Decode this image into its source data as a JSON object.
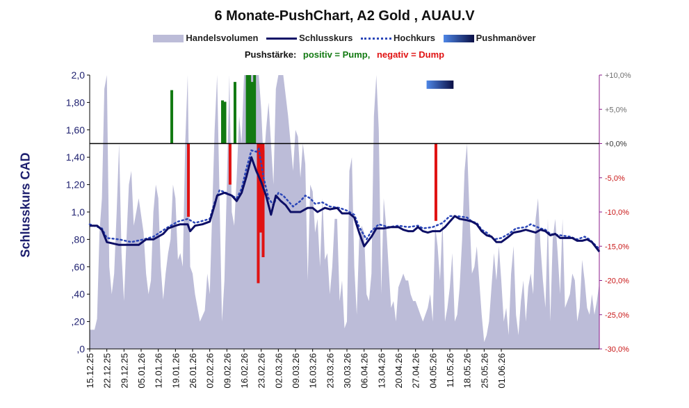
{
  "chart_data": {
    "type": "line",
    "title": "6 Monate-PushChart, A2 Gold , AUAU.V",
    "legend": {
      "volume": "Handelsvolumen",
      "close": "Schlusskurs",
      "high": "Hochkurs",
      "push": "Pushmanöver"
    },
    "push_note": {
      "prefix": "Pushstärke:",
      "positive": "positiv = Pump,",
      "negative": "negativ = Dump"
    },
    "ylabel": "Schlusskurs CAD",
    "ylim": [
      0,
      2.0
    ],
    "y_ticks": [
      ",0",
      ",20",
      ",40",
      ",60",
      ",80",
      "1,0",
      "1,20",
      "1,40",
      "1,60",
      "1,80",
      "2,0"
    ],
    "y2lim": [
      -30,
      10
    ],
    "y2_ticks": [
      "-30,0%",
      "-25,0%",
      "-20,0%",
      "-15,0%",
      "-10,0%",
      "-5,0%",
      "+0,0%",
      "+5,0%",
      "+10,0%"
    ],
    "x_ticks": [
      "15.12.25",
      "22.12.25",
      "29.12.25",
      "05.01.26",
      "12.01.26",
      "19.01.26",
      "26.01.26",
      "02.02.26",
      "09.02.26",
      "16.02.26",
      "23.02.26",
      "02.03.26",
      "09.03.26",
      "16.03.26",
      "23.03.26",
      "30.03.26",
      "06.04.26",
      "13.04.26",
      "20.04.26",
      "27.04.26",
      "04.05.26",
      "11.05.26",
      "18.05.26",
      "25.05.26",
      "01.06.26"
    ],
    "days": 180,
    "close": [
      [
        0,
        0.9
      ],
      [
        3,
        0.9
      ],
      [
        5,
        0.87
      ],
      [
        7,
        0.78
      ],
      [
        12,
        0.76
      ],
      [
        15,
        0.76
      ],
      [
        20,
        0.76
      ],
      [
        23,
        0.8
      ],
      [
        26,
        0.8
      ],
      [
        30,
        0.84
      ],
      [
        32,
        0.88
      ],
      [
        35,
        0.9
      ],
      [
        37,
        0.91
      ],
      [
        40,
        0.91
      ],
      [
        41,
        0.86
      ],
      [
        43,
        0.9
      ],
      [
        46,
        0.91
      ],
      [
        49,
        0.93
      ],
      [
        51,
        1.05
      ],
      [
        52,
        1.12
      ],
      [
        55,
        1.14
      ],
      [
        58,
        1.12
      ],
      [
        60,
        1.08
      ],
      [
        62,
        1.14
      ],
      [
        64,
        1.26
      ],
      [
        66,
        1.4
      ],
      [
        68,
        1.3
      ],
      [
        70,
        1.22
      ],
      [
        72,
        1.12
      ],
      [
        74,
        0.98
      ],
      [
        76,
        1.12
      ],
      [
        78,
        1.08
      ],
      [
        80,
        1.05
      ],
      [
        82,
        1.0
      ],
      [
        84,
        1.0
      ],
      [
        86,
        1.0
      ],
      [
        89,
        1.03
      ],
      [
        91,
        1.03
      ],
      [
        93,
        1.0
      ],
      [
        96,
        1.03
      ],
      [
        98,
        1.02
      ],
      [
        101,
        1.03
      ],
      [
        103,
        0.99
      ],
      [
        106,
        0.99
      ],
      [
        108,
        0.96
      ],
      [
        110,
        0.85
      ],
      [
        112,
        0.75
      ],
      [
        115,
        0.82
      ],
      [
        117,
        0.88
      ],
      [
        120,
        0.88
      ],
      [
        123,
        0.89
      ],
      [
        126,
        0.89
      ],
      [
        128,
        0.87
      ],
      [
        130,
        0.86
      ],
      [
        132,
        0.86
      ],
      [
        134,
        0.89
      ],
      [
        136,
        0.86
      ],
      [
        138,
        0.85
      ],
      [
        140,
        0.86
      ],
      [
        143,
        0.86
      ],
      [
        145,
        0.89
      ],
      [
        147,
        0.93
      ],
      [
        149,
        0.97
      ],
      [
        151,
        0.95
      ],
      [
        154,
        0.94
      ],
      [
        156,
        0.93
      ],
      [
        158,
        0.91
      ],
      [
        160,
        0.86
      ],
      [
        162,
        0.83
      ],
      [
        164,
        0.82
      ],
      [
        166,
        0.78
      ],
      [
        168,
        0.78
      ],
      [
        171,
        0.82
      ],
      [
        173,
        0.85
      ],
      [
        176,
        0.86
      ],
      [
        178,
        0.87
      ],
      [
        180,
        0.86
      ],
      [
        182,
        0.85
      ],
      [
        184,
        0.87
      ],
      [
        186,
        0.86
      ],
      [
        188,
        0.83
      ],
      [
        190,
        0.84
      ],
      [
        192,
        0.81
      ],
      [
        195,
        0.81
      ],
      [
        197,
        0.81
      ],
      [
        199,
        0.79
      ],
      [
        201,
        0.79
      ],
      [
        203,
        0.8
      ],
      [
        205,
        0.78
      ],
      [
        208,
        0.71
      ]
    ],
    "high": [
      [
        0,
        0.91
      ],
      [
        5,
        0.88
      ],
      [
        7,
        0.81
      ],
      [
        12,
        0.8
      ],
      [
        17,
        0.78
      ],
      [
        22,
        0.8
      ],
      [
        26,
        0.82
      ],
      [
        32,
        0.89
      ],
      [
        36,
        0.93
      ],
      [
        40,
        0.95
      ],
      [
        43,
        0.92
      ],
      [
        49,
        0.95
      ],
      [
        51,
        1.07
      ],
      [
        53,
        1.16
      ],
      [
        57,
        1.13
      ],
      [
        60,
        1.1
      ],
      [
        62,
        1.17
      ],
      [
        64,
        1.32
      ],
      [
        66,
        1.45
      ],
      [
        68,
        1.44
      ],
      [
        69,
        1.46
      ],
      [
        71,
        1.25
      ],
      [
        73,
        1.1
      ],
      [
        75,
        1.05
      ],
      [
        77,
        1.14
      ],
      [
        79,
        1.12
      ],
      [
        81,
        1.08
      ],
      [
        83,
        1.04
      ],
      [
        86,
        1.08
      ],
      [
        88,
        1.12
      ],
      [
        90,
        1.1
      ],
      [
        92,
        1.06
      ],
      [
        95,
        1.07
      ],
      [
        98,
        1.04
      ],
      [
        102,
        1.03
      ],
      [
        105,
        1.01
      ],
      [
        108,
        0.98
      ],
      [
        110,
        0.89
      ],
      [
        113,
        0.8
      ],
      [
        115,
        0.86
      ],
      [
        118,
        0.91
      ],
      [
        122,
        0.89
      ],
      [
        126,
        0.9
      ],
      [
        130,
        0.89
      ],
      [
        134,
        0.9
      ],
      [
        136,
        0.88
      ],
      [
        140,
        0.89
      ],
      [
        144,
        0.92
      ],
      [
        147,
        0.97
      ],
      [
        150,
        0.97
      ],
      [
        154,
        0.96
      ],
      [
        156,
        0.93
      ],
      [
        158,
        0.92
      ],
      [
        160,
        0.87
      ],
      [
        162,
        0.85
      ],
      [
        165,
        0.8
      ],
      [
        168,
        0.81
      ],
      [
        171,
        0.84
      ],
      [
        174,
        0.88
      ],
      [
        178,
        0.89
      ],
      [
        180,
        0.91
      ],
      [
        184,
        0.88
      ],
      [
        186,
        0.87
      ],
      [
        188,
        0.84
      ],
      [
        192,
        0.83
      ],
      [
        196,
        0.82
      ],
      [
        199,
        0.8
      ],
      [
        202,
        0.82
      ],
      [
        204,
        0.8
      ],
      [
        208,
        0.73
      ]
    ],
    "volume": [
      [
        0,
        0.14
      ],
      [
        1,
        0.14
      ],
      [
        2,
        0.14
      ],
      [
        3,
        0.22
      ],
      [
        4,
        0.85
      ],
      [
        5,
        1.1
      ],
      [
        6,
        1.9
      ],
      [
        7,
        2.1
      ],
      [
        8,
        0.6
      ],
      [
        9,
        0.4
      ],
      [
        10,
        0.55
      ],
      [
        11,
        1.0
      ],
      [
        12,
        1.5
      ],
      [
        13,
        0.7
      ],
      [
        14,
        0.35
      ],
      [
        15,
        0.8
      ],
      [
        16,
        1.2
      ],
      [
        17,
        1.3
      ],
      [
        18,
        0.9
      ],
      [
        19,
        1.0
      ],
      [
        20,
        1.1
      ],
      [
        22,
        0.85
      ],
      [
        23,
        0.55
      ],
      [
        24,
        0.4
      ],
      [
        25,
        0.5
      ],
      [
        26,
        1.0
      ],
      [
        27,
        1.2
      ],
      [
        28,
        1.1
      ],
      [
        29,
        0.6
      ],
      [
        30,
        0.36
      ],
      [
        31,
        0.55
      ],
      [
        32,
        0.7
      ],
      [
        33,
        0.8
      ],
      [
        34,
        1.2
      ],
      [
        35,
        1.1
      ],
      [
        36,
        0.65
      ],
      [
        37,
        0.7
      ],
      [
        38,
        0.6
      ],
      [
        39,
        1.5
      ],
      [
        40,
        2.1
      ],
      [
        41,
        0.6
      ],
      [
        42,
        0.55
      ],
      [
        43,
        0.4
      ],
      [
        44,
        0.3
      ],
      [
        45,
        0.2
      ],
      [
        47,
        0.28
      ],
      [
        48,
        0.55
      ],
      [
        49,
        0.4
      ],
      [
        50,
        1.0
      ],
      [
        51,
        1.6
      ],
      [
        52,
        2.0
      ],
      [
        53,
        1.1
      ],
      [
        54,
        0.2
      ],
      [
        55,
        0.5
      ],
      [
        56,
        1.2
      ],
      [
        57,
        2.1
      ],
      [
        58,
        1.0
      ],
      [
        59,
        0.9
      ],
      [
        60,
        1.25
      ],
      [
        61,
        1.7
      ],
      [
        62,
        1.5
      ],
      [
        63,
        2.1
      ],
      [
        65,
        2.1
      ],
      [
        67,
        2.1
      ],
      [
        69,
        2.1
      ],
      [
        70,
        1.75
      ],
      [
        71,
        1.35
      ],
      [
        72,
        1.6
      ],
      [
        73,
        1.8
      ],
      [
        75,
        1.2
      ],
      [
        76,
        1.9
      ],
      [
        77,
        2.0
      ],
      [
        78,
        2.1
      ],
      [
        79,
        2.1
      ],
      [
        80,
        1.85
      ],
      [
        81,
        1.7
      ],
      [
        82,
        1.5
      ],
      [
        83,
        1.3
      ],
      [
        84,
        1.6
      ],
      [
        85,
        1.55
      ],
      [
        86,
        1.25
      ],
      [
        87,
        1.5
      ],
      [
        88,
        1.35
      ],
      [
        89,
        0.5
      ],
      [
        90,
        1.2
      ],
      [
        91,
        1.15
      ],
      [
        92,
        0.85
      ],
      [
        93,
        0.95
      ],
      [
        94,
        0.6
      ],
      [
        95,
        1.1
      ],
      [
        96,
        0.65
      ],
      [
        97,
        0.7
      ],
      [
        98,
        0.4
      ],
      [
        99,
        0.6
      ],
      [
        100,
        0.95
      ],
      [
        101,
        0.95
      ],
      [
        102,
        0.35
      ],
      [
        103,
        0.5
      ],
      [
        104,
        0.15
      ],
      [
        105,
        0.2
      ],
      [
        106,
        1.3
      ],
      [
        107,
        1.4
      ],
      [
        108,
        0.6
      ],
      [
        109,
        0.25
      ],
      [
        110,
        0.8
      ],
      [
        111,
        0.9
      ],
      [
        112,
        0.85
      ],
      [
        113,
        0.4
      ],
      [
        114,
        0.35
      ],
      [
        115,
        0.55
      ],
      [
        116,
        1.7
      ],
      [
        117,
        2.1
      ],
      [
        118,
        1.6
      ],
      [
        119,
        0.4
      ],
      [
        120,
        1.1
      ],
      [
        121,
        0.9
      ],
      [
        122,
        0.6
      ],
      [
        123,
        0.3
      ],
      [
        124,
        0.35
      ],
      [
        125,
        0.2
      ],
      [
        126,
        0.45
      ],
      [
        127,
        0.5
      ],
      [
        128,
        0.55
      ],
      [
        129,
        0.5
      ],
      [
        130,
        0.5
      ],
      [
        131,
        0.4
      ],
      [
        132,
        0.35
      ],
      [
        133,
        0.35
      ],
      [
        134,
        0.3
      ],
      [
        135,
        0.25
      ],
      [
        136,
        0.2
      ],
      [
        137,
        0.25
      ],
      [
        138,
        0.3
      ],
      [
        139,
        0.4
      ],
      [
        140,
        0.2
      ],
      [
        141,
        0.9
      ],
      [
        142,
        0.75
      ],
      [
        143,
        0.5
      ],
      [
        144,
        0.95
      ],
      [
        145,
        0.2
      ],
      [
        146,
        0.3
      ],
      [
        147,
        0.45
      ],
      [
        148,
        0.7
      ],
      [
        149,
        0.2
      ],
      [
        150,
        0.25
      ],
      [
        151,
        0.45
      ],
      [
        152,
        0.8
      ],
      [
        153,
        1.3
      ],
      [
        154,
        1.5
      ],
      [
        155,
        1.0
      ],
      [
        156,
        0.55
      ],
      [
        157,
        0.6
      ],
      [
        158,
        0.75
      ],
      [
        159,
        0.5
      ],
      [
        160,
        0.25
      ],
      [
        161,
        0.05
      ],
      [
        162,
        0.1
      ],
      [
        163,
        0.2
      ],
      [
        164,
        0.45
      ],
      [
        165,
        0.7
      ],
      [
        166,
        0.5
      ],
      [
        167,
        0.75
      ],
      [
        168,
        0.5
      ],
      [
        169,
        0.2
      ],
      [
        170,
        0.3
      ],
      [
        171,
        0.1
      ],
      [
        172,
        0.55
      ],
      [
        173,
        0.75
      ],
      [
        174,
        0.25
      ],
      [
        175,
        0.1
      ],
      [
        176,
        0.35
      ],
      [
        177,
        0.5
      ],
      [
        178,
        0.2
      ],
      [
        179,
        0.45
      ],
      [
        180,
        0.55
      ],
      [
        181,
        0.4
      ],
      [
        182,
        0.95
      ],
      [
        183,
        1.1
      ],
      [
        184,
        0.75
      ],
      [
        185,
        0.5
      ],
      [
        186,
        0.3
      ],
      [
        187,
        0.95
      ],
      [
        188,
        0.2
      ],
      [
        189,
        0.8
      ],
      [
        190,
        0.95
      ],
      [
        191,
        0.7
      ],
      [
        192,
        0.4
      ],
      [
        193,
        0.95
      ],
      [
        194,
        0.3
      ],
      [
        195,
        0.35
      ],
      [
        196,
        0.4
      ],
      [
        197,
        0.55
      ],
      [
        198,
        0.5
      ],
      [
        199,
        0.2
      ],
      [
        200,
        0.3
      ],
      [
        201,
        0.65
      ],
      [
        202,
        0.5
      ],
      [
        203,
        0.3
      ],
      [
        204,
        0.25
      ],
      [
        205,
        0.4
      ],
      [
        206,
        0.25
      ],
      [
        207,
        0.35
      ],
      [
        208,
        0.48
      ]
    ],
    "push": [
      {
        "day": 33.5,
        "value": 7.8
      },
      {
        "day": 40.3,
        "value": -10.7
      },
      {
        "day": 54.2,
        "value": 6.3
      },
      {
        "day": 55.2,
        "value": 6.1
      },
      {
        "day": 57.3,
        "value": -6.0
      },
      {
        "day": 59.3,
        "value": 9.0
      },
      {
        "day": 64.3,
        "value": 11
      },
      {
        "day": 65.3,
        "value": 11
      },
      {
        "day": 66.3,
        "value": 9.0
      },
      {
        "day": 67.3,
        "value": 11
      },
      {
        "day": 68.8,
        "value": -20.4
      },
      {
        "day": 69.8,
        "value": -13.0
      },
      {
        "day": 70.8,
        "value": -16.6
      },
      {
        "day": 141.3,
        "value": -11.3
      }
    ],
    "push_marker": {
      "day_start": 137.5,
      "day_end": 148.5,
      "level": 1.94
    },
    "colors": {
      "volume": "#bcbcd8",
      "close": "#0d0f66",
      "high": "#2a46b8",
      "pump": "#127a12",
      "dump": "#e01212",
      "right_axis": "#8b1a8b",
      "push_light": "#4e86e6",
      "push_dark": "#0a0f45"
    }
  }
}
